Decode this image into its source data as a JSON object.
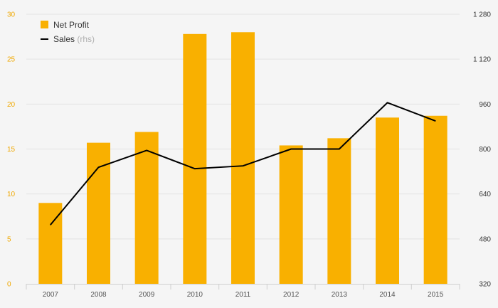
{
  "chart_data": {
    "type": "bar",
    "categories": [
      "2007",
      "2008",
      "2009",
      "2010",
      "2011",
      "2012",
      "2013",
      "2014",
      "2015"
    ],
    "series": [
      {
        "name": "Net Profit",
        "type": "bar",
        "axis": "left",
        "color": "#f9b000",
        "values": [
          9.0,
          15.7,
          16.9,
          27.8,
          28.0,
          15.4,
          16.2,
          18.5,
          18.7
        ]
      },
      {
        "name": "Sales",
        "name_suffix": "(rhs)",
        "type": "line",
        "axis": "right",
        "color": "#000000",
        "values": [
          530,
          735,
          795,
          730,
          740,
          800,
          800,
          965,
          900
        ]
      }
    ],
    "yleft": {
      "min": 0,
      "max": 30,
      "ticks": [
        "0",
        "5",
        "10",
        "15",
        "20",
        "25",
        "30"
      ],
      "tick_values": [
        0,
        5,
        10,
        15,
        20,
        25,
        30
      ]
    },
    "yright": {
      "min": 320,
      "max": 1280,
      "ticks": [
        "320",
        "480",
        "640",
        "800",
        "960",
        "1 120",
        "1 280"
      ],
      "tick_values": [
        320,
        480,
        640,
        800,
        960,
        1120,
        1280
      ]
    },
    "legend": {
      "placement": "top-left"
    },
    "grid": true
  }
}
